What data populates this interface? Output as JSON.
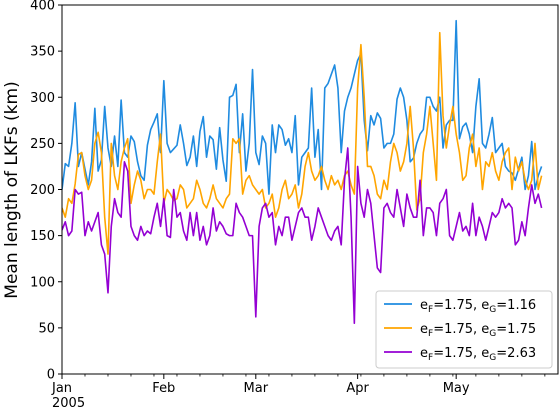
{
  "chart_data": {
    "type": "line",
    "ylabel": "Mean length of LKFs (km)",
    "xlabel": "",
    "ylim": [
      0,
      400
    ],
    "yticks": [
      0,
      50,
      100,
      150,
      200,
      250,
      300,
      350,
      400
    ],
    "xlim": [
      "2005-01-01",
      "2005-06-01"
    ],
    "xticks": [
      {
        "date": "2005-01-01",
        "label": "Jan",
        "sublabel": "2005"
      },
      {
        "date": "2005-02-01",
        "label": "Feb",
        "sublabel": ""
      },
      {
        "date": "2005-03-01",
        "label": "Mar",
        "sublabel": ""
      },
      {
        "date": "2005-04-01",
        "label": "Apr",
        "sublabel": ""
      },
      {
        "date": "2005-05-01",
        "label": "May",
        "sublabel": ""
      }
    ],
    "grid": false,
    "legend_position": "bottom-right",
    "x_start": "2005-01-01",
    "x_step_days": 1,
    "series": [
      {
        "name": "eF=1.75, eG=1.16",
        "legend": {
          "a": "e",
          "a_sub": "F",
          "mid": "=1.75, e",
          "b_sub": "G",
          "end": "=1.16"
        },
        "color": "#1f8be0",
        "values": [
          200,
          228,
          225,
          250,
          294,
          225,
          240,
          222,
          205,
          230,
          288,
          220,
          232,
          290,
          245,
          225,
          258,
          225,
          297,
          240,
          235,
          258,
          252,
          230,
          215,
          210,
          248,
          265,
          273,
          282,
          240,
          318,
          250,
          240,
          244,
          248,
          270,
          250,
          226,
          235,
          258,
          225,
          263,
          279,
          235,
          258,
          254,
          222,
          267,
          232,
          209,
          300,
          302,
          314,
          240,
          282,
          220,
          250,
          330,
          240,
          227,
          258,
          250,
          195,
          270,
          240,
          270,
          265,
          248,
          255,
          240,
          280,
          205,
          235,
          240,
          245,
          310,
          235,
          265,
          200,
          310,
          315,
          325,
          335,
          310,
          240,
          285,
          300,
          310,
          325,
          340,
          347,
          275,
          242,
          280,
          270,
          283,
          277,
          245,
          250,
          250,
          260,
          298,
          310,
          300,
          275,
          230,
          234,
          250,
          260,
          265,
          300,
          300,
          290,
          285,
          300,
          245,
          270,
          275,
          275,
          383,
          255,
          268,
          272,
          260,
          240,
          290,
          320,
          250,
          245,
          260,
          278,
          240,
          245,
          250,
          225,
          220,
          218,
          210,
          222,
          235,
          200,
          215,
          252,
          200,
          215,
          225
        ],
        "draw_over": false
      },
      {
        "name": "eF=1.75, eG=1.75",
        "legend": {
          "a": "e",
          "a_sub": "F",
          "mid": "=1.75, e",
          "b_sub": "G",
          "end": "=1.75"
        },
        "color": "#ffa500",
        "values": [
          180,
          170,
          190,
          185,
          206,
          238,
          240,
          215,
          200,
          210,
          250,
          262,
          240,
          170,
          130,
          250,
          215,
          200,
          230,
          245,
          255,
          185,
          205,
          220,
          210,
          190,
          200,
          200,
          195,
          230,
          260,
          185,
          200,
          195,
          188,
          190,
          205,
          200,
          180,
          185,
          190,
          210,
          200,
          185,
          180,
          190,
          205,
          190,
          185,
          180,
          190,
          195,
          255,
          250,
          255,
          195,
          210,
          215,
          205,
          200,
          195,
          200,
          180,
          185,
          195,
          170,
          180,
          200,
          210,
          190,
          195,
          205,
          180,
          195,
          225,
          240,
          220,
          210,
          215,
          225,
          210,
          200,
          215,
          205,
          210,
          200,
          215,
          220,
          205,
          195,
          310,
          357,
          300,
          225,
          225,
          215,
          195,
          190,
          210,
          200,
          230,
          250,
          240,
          220,
          230,
          250,
          290,
          245,
          178,
          190,
          240,
          260,
          290,
          250,
          210,
          370,
          280,
          245,
          270,
          290,
          260,
          240,
          210,
          215,
          245,
          260,
          225,
          245,
          200,
          230,
          225,
          240,
          220,
          210,
          230,
          240,
          245,
          200,
          235,
          220,
          230,
          210,
          200,
          210,
          250,
          200,
          215
        ],
        "draw_over": false
      },
      {
        "name": "eF=1.75, eG=2.63",
        "legend": {
          "a": "e",
          "a_sub": "F",
          "mid": "=1.75, e",
          "b_sub": "G",
          "end": "=2.63"
        },
        "color": "#9400d3",
        "values": [
          156,
          165,
          150,
          155,
          200,
          195,
          197,
          150,
          165,
          155,
          165,
          175,
          140,
          130,
          88,
          160,
          190,
          175,
          170,
          230,
          220,
          160,
          150,
          145,
          160,
          150,
          155,
          152,
          170,
          185,
          160,
          190,
          150,
          148,
          200,
          170,
          175,
          155,
          145,
          175,
          150,
          175,
          145,
          160,
          140,
          150,
          180,
          155,
          165,
          160,
          152,
          150,
          150,
          185,
          175,
          170,
          160,
          150,
          150,
          62,
          160,
          180,
          185,
          170,
          175,
          140,
          160,
          150,
          170,
          170,
          145,
          160,
          175,
          180,
          170,
          170,
          145,
          160,
          180,
          170,
          160,
          150,
          145,
          155,
          160,
          140,
          210,
          245,
          170,
          55,
          225,
          185,
          170,
          200,
          185,
          150,
          115,
          110,
          180,
          185,
          175,
          170,
          200,
          180,
          160,
          195,
          180,
          170,
          170,
          210,
          150,
          180,
          180,
          175,
          150,
          185,
          190,
          200,
          150,
          145,
          160,
          175,
          155,
          160,
          150,
          185,
          150,
          170,
          160,
          145,
          160,
          175,
          170,
          175,
          190,
          180,
          185,
          180,
          140,
          145,
          165,
          150,
          180,
          205,
          185,
          195,
          180
        ],
        "draw_over": true
      }
    ]
  }
}
